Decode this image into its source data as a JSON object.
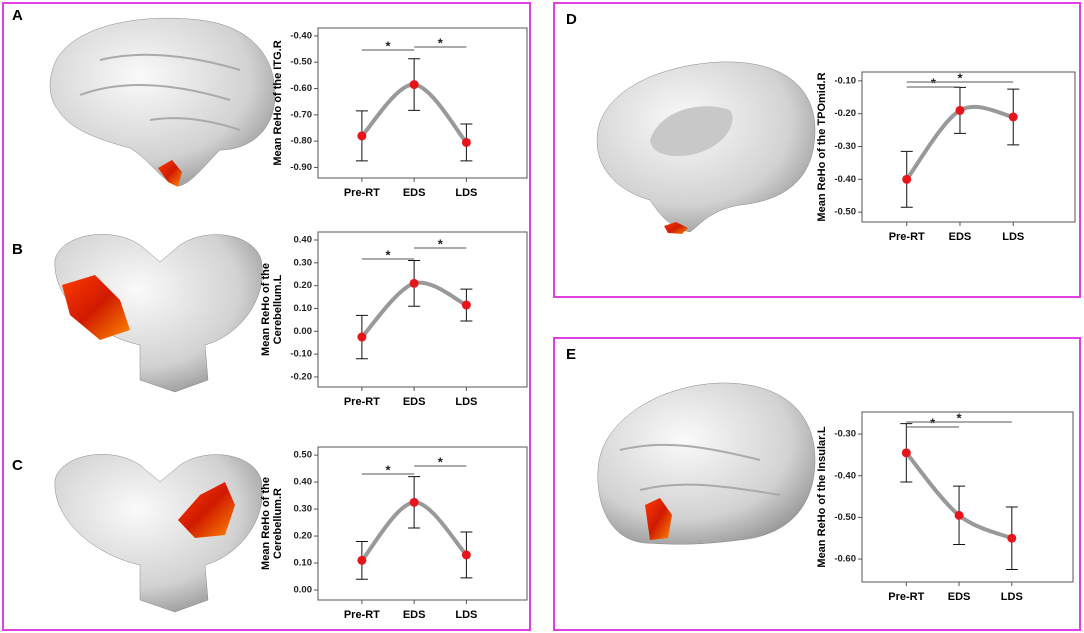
{
  "chart_data": [
    {
      "type": "line",
      "panel": "A",
      "ylabel": [
        "Mean ReHo of the ITG.R"
      ],
      "categories": [
        "Pre-RT",
        "EDS",
        "LDS"
      ],
      "values": [
        -0.78,
        -0.585,
        -0.805
      ],
      "errors": [
        0.095,
        0.098,
        0.07
      ],
      "ylim": [
        -0.94,
        -0.37
      ],
      "yticks": [
        {
          "value": -0.4,
          "label": "-0.40"
        },
        {
          "value": -0.5,
          "label": "-0.50"
        },
        {
          "value": -0.6,
          "label": "-0.60"
        },
        {
          "value": -0.7,
          "label": "-0.70"
        },
        {
          "value": -0.8,
          "label": "-0.80"
        },
        {
          "value": -0.9,
          "label": "-0.90"
        }
      ],
      "line_color": "#999999",
      "marker_color": "#e8141b",
      "significance": [
        {
          "from": 0,
          "to": 1,
          "label": "*"
        },
        {
          "from": 1,
          "to": 2,
          "label": "*"
        }
      ]
    },
    {
      "type": "line",
      "panel": "B",
      "ylabel": [
        "Mean ReHo of the",
        "Cerebellum.L"
      ],
      "categories": [
        "Pre-RT",
        "EDS",
        "LDS"
      ],
      "values": [
        -0.025,
        0.21,
        0.115
      ],
      "errors": [
        0.095,
        0.1,
        0.07
      ],
      "ylim": [
        -0.244,
        0.435
      ],
      "yticks": [
        {
          "value": 0.4,
          "label": "0.40"
        },
        {
          "value": 0.3,
          "label": "0.30"
        },
        {
          "value": 0.2,
          "label": "0.20"
        },
        {
          "value": 0.1,
          "label": "0.10"
        },
        {
          "value": 0,
          "label": "0.00"
        },
        {
          "value": -0.1,
          "label": "-0.10"
        },
        {
          "value": -0.2,
          "label": "-0.20"
        }
      ],
      "line_color": "#999999",
      "marker_color": "#e8141b",
      "significance": [
        {
          "from": 0,
          "to": 1,
          "label": "*"
        },
        {
          "from": 1,
          "to": 2,
          "label": "*"
        }
      ]
    },
    {
      "type": "line",
      "panel": "C",
      "ylabel": [
        "Mean ReHo of the",
        "Cerebellum.R"
      ],
      "categories": [
        "Pre-RT",
        "EDS",
        "LDS"
      ],
      "values": [
        0.11,
        0.325,
        0.13
      ],
      "errors": [
        0.07,
        0.095,
        0.085
      ],
      "ylim": [
        -0.037,
        0.53
      ],
      "yticks": [
        {
          "value": 0.5,
          "label": "0.50"
        },
        {
          "value": 0.4,
          "label": "0.40"
        },
        {
          "value": 0.3,
          "label": "0.30"
        },
        {
          "value": 0.2,
          "label": "0.20"
        },
        {
          "value": 0.1,
          "label": "0.10"
        },
        {
          "value": 0,
          "label": "0.00"
        }
      ],
      "line_color": "#999999",
      "marker_color": "#e8141b",
      "significance": [
        {
          "from": 0,
          "to": 1,
          "label": "*"
        },
        {
          "from": 1,
          "to": 2,
          "label": "*"
        }
      ]
    },
    {
      "type": "line",
      "panel": "D",
      "ylabel": [
        "Mean ReHo of the TPOmid.R"
      ],
      "categories": [
        "Pre-RT",
        "EDS",
        "LDS"
      ],
      "values": [
        -0.4,
        -0.19,
        -0.21
      ],
      "errors": [
        0.085,
        0.07,
        0.085
      ],
      "ylim": [
        -0.53,
        -0.073
      ],
      "yticks": [
        {
          "value": -0.1,
          "label": "-0.10"
        },
        {
          "value": -0.2,
          "label": "-0.20"
        },
        {
          "value": -0.3,
          "label": "-0.30"
        },
        {
          "value": -0.4,
          "label": "-0.40"
        },
        {
          "value": -0.5,
          "label": "-0.50"
        }
      ],
      "line_color": "#999999",
      "marker_color": "#e8141b",
      "significance": [
        {
          "from": 0,
          "to": 1,
          "label": "*"
        },
        {
          "from": 0,
          "to": 2,
          "label": "*"
        }
      ]
    },
    {
      "type": "line",
      "panel": "E",
      "ylabel": [
        "Mean ReHo of the Insular.L"
      ],
      "categories": [
        "Pre-RT",
        "EDS",
        "LDS"
      ],
      "values": [
        -0.345,
        -0.495,
        -0.55
      ],
      "errors": [
        0.07,
        0.07,
        0.075
      ],
      "ylim": [
        -0.655,
        -0.247
      ],
      "yticks": [
        {
          "value": -0.3,
          "label": "-0.30"
        },
        {
          "value": -0.4,
          "label": "-0.40"
        },
        {
          "value": -0.5,
          "label": "-0.50"
        },
        {
          "value": -0.6,
          "label": "-0.60"
        }
      ],
      "line_color": "#999999",
      "marker_color": "#e8141b",
      "significance": [
        {
          "from": 0,
          "to": 1,
          "label": "*"
        },
        {
          "from": 0,
          "to": 2,
          "label": "*"
        }
      ]
    }
  ]
}
